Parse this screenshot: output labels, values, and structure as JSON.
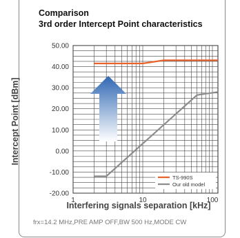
{
  "chart_data": {
    "type": "line",
    "title": "Comparison",
    "subtitle": "3rd order Intercept Point characteristics",
    "xlabel": "Interfering signals separation [kHz]",
    "ylabel": "Intercept Point [dBm]",
    "x_scale": "log",
    "xlim": [
      1,
      120
    ],
    "ylim": [
      -20,
      50
    ],
    "y_ticks": [
      "50.00",
      "40.00",
      "30.00",
      "20.00",
      "10.00",
      "0.00",
      "-10.00",
      "-20.00"
    ],
    "x_ticks": [
      "1",
      "10",
      "100"
    ],
    "grid": true,
    "legend_position": "bottom-right",
    "series": [
      {
        "name": "TS-990S",
        "color": "#e8622a",
        "x": [
          2,
          10,
          20,
          120
        ],
        "y": [
          41.5,
          41.5,
          43,
          43
        ]
      },
      {
        "name": "Our old model",
        "color": "#8c8c8c",
        "x": [
          2,
          3,
          60,
          120
        ],
        "y": [
          -12,
          -12,
          26.5,
          28
        ]
      }
    ],
    "annotation": "frx=14.2 MHz,PRE AMP OFF,BW 500 Hz,MODE CW"
  },
  "colors": {
    "ts990s": "#e8622a",
    "old_model": "#8c8c8c",
    "arrow_top": "#2f67b3",
    "arrow_bottom": "#ffffff"
  },
  "icons": {
    "arrow": "up-arrow-icon"
  }
}
